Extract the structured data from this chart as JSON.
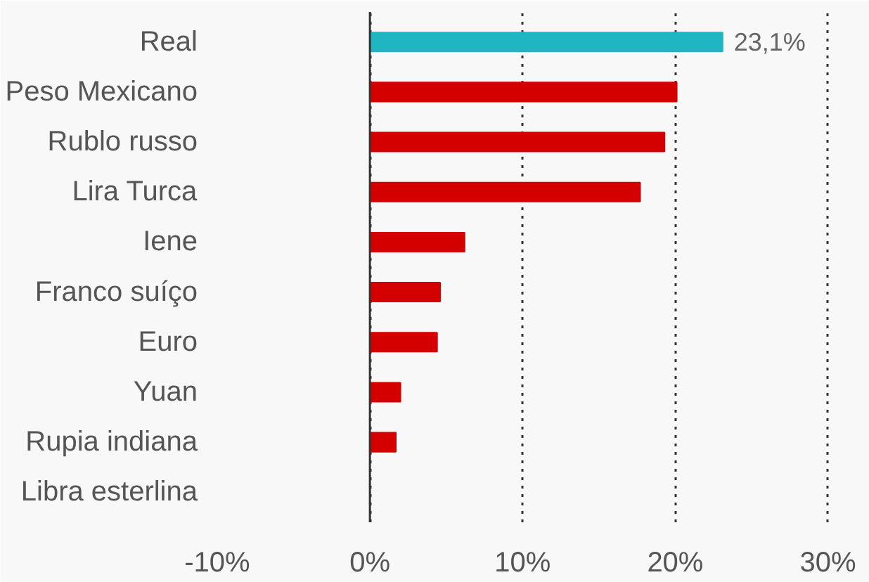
{
  "chart_data": {
    "type": "bar",
    "orientation": "horizontal",
    "categories": [
      "Real",
      "Peso Mexicano",
      "Rublo russo",
      "Lira Turca",
      "Iene",
      "Franco suíço",
      "Euro",
      "Yuan",
      "Rupia indiana",
      "Libra esterlina"
    ],
    "values": [
      23.1,
      20.1,
      19.3,
      17.7,
      6.2,
      4.6,
      4.4,
      2.0,
      1.7,
      null
    ],
    "colors": [
      "#1fb5c1",
      "#d40000",
      "#d40000",
      "#d40000",
      "#d40000",
      "#d40000",
      "#d40000",
      "#d40000",
      "#d40000",
      "#d40000"
    ],
    "value_labels": [
      "23,1%",
      null,
      null,
      null,
      null,
      null,
      null,
      null,
      null,
      null
    ],
    "xlim": [
      -10,
      32
    ],
    "xticks": [
      {
        "value": -10,
        "label": "-10%"
      },
      {
        "value": 0,
        "label": "0%"
      },
      {
        "value": 10,
        "label": "10%"
      },
      {
        "value": 20,
        "label": "20%"
      },
      {
        "value": 30,
        "label": "30%"
      }
    ],
    "grid": "x",
    "ref_lines": [
      {
        "axis": "x",
        "value": 0,
        "color": "#333333",
        "line_style": "solid"
      }
    ]
  }
}
